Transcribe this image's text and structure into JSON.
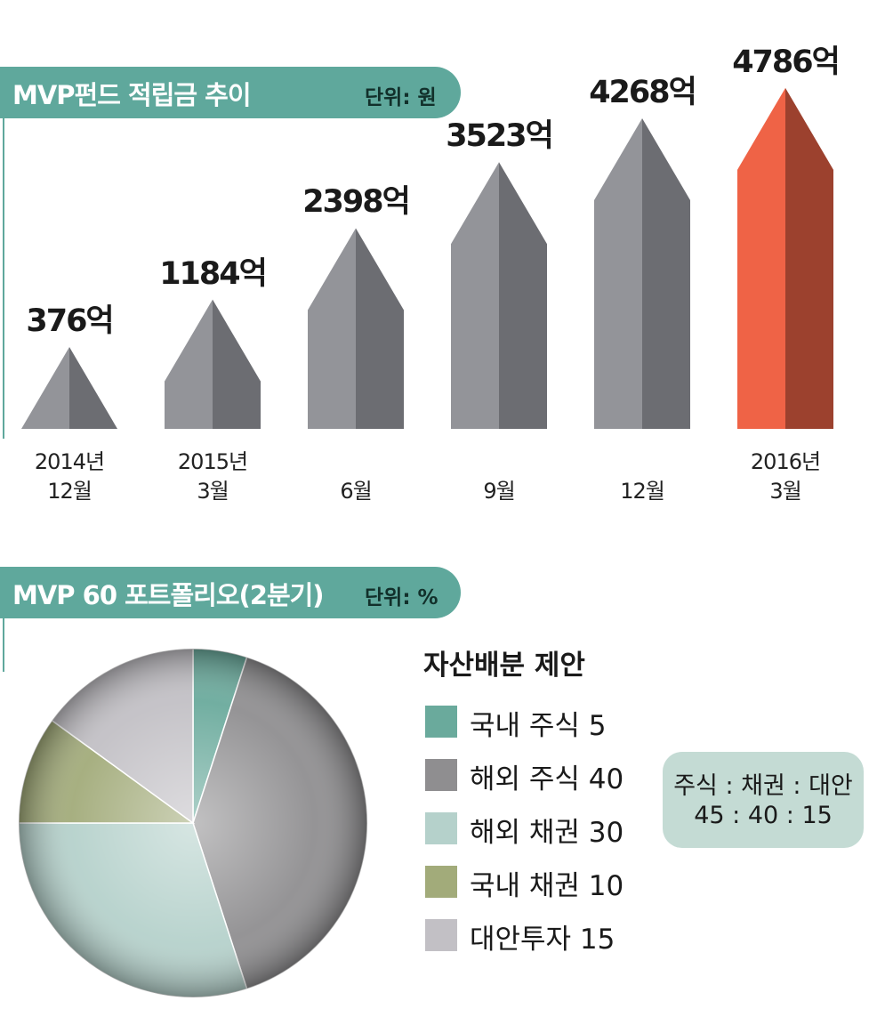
{
  "top_panel": {
    "title": "MVP펀드 적립금 추이",
    "unit": "단위: 원"
  },
  "bottom_panel": {
    "title": "MVP 60 포트폴리오(2분기)",
    "unit": "단위: %"
  },
  "chart_data": [
    {
      "type": "bar",
      "title": "MVP펀드 적립금 추이",
      "unit": "단위: 원",
      "categories": [
        [
          "2014년",
          "12월"
        ],
        [
          "2015년",
          "3월"
        ],
        [
          "",
          "6월"
        ],
        [
          "",
          "9월"
        ],
        [
          "",
          "12월"
        ],
        [
          "2016년",
          "3월"
        ]
      ],
      "values": [
        376,
        1184,
        2398,
        3523,
        4268,
        4786
      ],
      "value_labels": [
        "376억",
        "1184억",
        "2398억",
        "3523억",
        "4268억",
        "4786억"
      ],
      "colors": {
        "normal_light": "#939499",
        "normal_dark": "#6c6d72",
        "highlight_light": "#ef6346",
        "highlight_dark": "#9c412e"
      },
      "highlight_index": 5
    },
    {
      "type": "pie",
      "title": "MVP 60 포트폴리오(2분기)",
      "unit": "단위: %",
      "legend_title": "자산배분 제안",
      "legend_position": "right",
      "slices": [
        {
          "label": "국내 주식 5",
          "value": 5,
          "color": "#6aaa9c"
        },
        {
          "label": "해외 주식 40",
          "value": 40,
          "color": "#8f8e90"
        },
        {
          "label": "해외 채권 30",
          "value": 30,
          "color": "#b5d1cb"
        },
        {
          "label": "국내 채권 10",
          "value": 10,
          "color": "#a2ab7a"
        },
        {
          "label": "대안투자 15",
          "value": 15,
          "color": "#c2c0c5"
        }
      ],
      "ratio_box": {
        "header": "주식 : 채권 : 대안",
        "values": "45 : 40 : 15"
      }
    }
  ]
}
